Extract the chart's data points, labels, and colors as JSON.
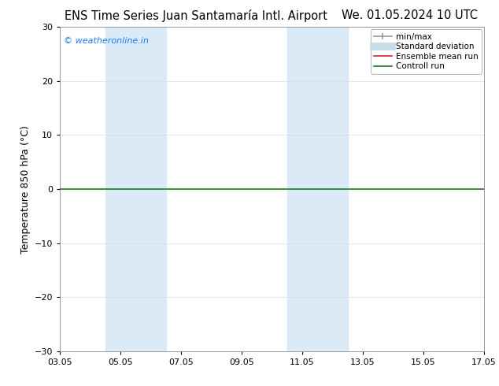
{
  "title_left": "ENS Time Series Juan Santamaría Intl. Airport",
  "title_right": "We. 01.05.2024 10 UTC",
  "ylabel": "Temperature 850 hPa (°C)",
  "ylim": [
    -30,
    30
  ],
  "yticks": [
    -30,
    -20,
    -10,
    0,
    10,
    20,
    30
  ],
  "xtick_labels": [
    "03.05",
    "05.05",
    "07.05",
    "09.05",
    "11.05",
    "13.05",
    "15.05",
    "17.05"
  ],
  "xtick_positions": [
    0,
    2,
    4,
    6,
    8,
    10,
    12,
    14
  ],
  "shaded_bands": [
    {
      "x_start": 1.5,
      "x_end": 3.5
    },
    {
      "x_start": 7.5,
      "x_end": 9.5
    }
  ],
  "shaded_color": "#daeaf7",
  "horizontal_line_y": 0,
  "horizontal_line_color": "#1a7a1a",
  "watermark_text": "© weatheronline.in",
  "watermark_color": "#1a7aff",
  "legend_entries": [
    {
      "label": "min/max",
      "color": "#999999",
      "lw": 1.2,
      "style": "solid",
      "type": "line_caps"
    },
    {
      "label": "Standard deviation",
      "color": "#c8dce8",
      "lw": 7,
      "style": "solid",
      "type": "bar"
    },
    {
      "label": "Ensemble mean run",
      "color": "#dd2222",
      "lw": 1.2,
      "style": "solid",
      "type": "line"
    },
    {
      "label": "Controll run",
      "color": "#1a7a1a",
      "lw": 1.2,
      "style": "solid",
      "type": "line"
    }
  ],
  "bg_color": "#ffffff",
  "title_fontsize": 10.5,
  "ylabel_fontsize": 9,
  "tick_fontsize": 8,
  "legend_fontsize": 7.5,
  "watermark_fontsize": 8,
  "grid_color": "#dddddd",
  "grid_lw": 0.5,
  "xlim": [
    0,
    14
  ]
}
